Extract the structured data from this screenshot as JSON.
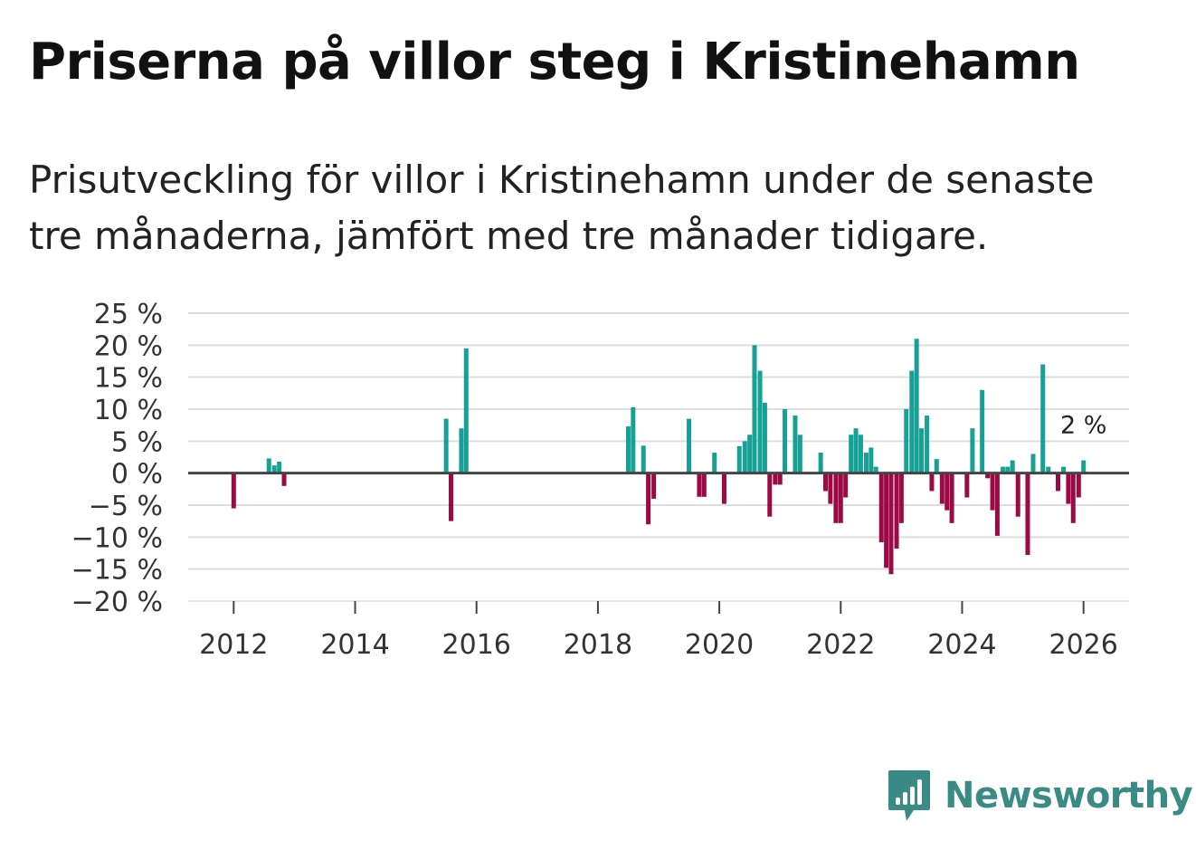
{
  "title": "Priserna på villor steg i Kristinehamn",
  "subtitle": "Prisutveckling för villor i Kristinehamn under de senaste tre månaderna, jämfört med tre månader tidigare.",
  "brand": {
    "name": "Newsworthy",
    "color": "#3a8a85",
    "icon": "bar-chart-speech-bubble-icon"
  },
  "colors": {
    "positive": "#16a196",
    "negative": "#9b0a44",
    "grid": "#dddddd",
    "zero_line": "#444444"
  },
  "chart_data": {
    "type": "bar",
    "title": "Priserna på villor steg i Kristinehamn",
    "xlabel": "",
    "ylabel": "",
    "unit": "%",
    "ylim": [
      -20,
      25
    ],
    "yticks": [
      25,
      20,
      15,
      10,
      5,
      0,
      -5,
      -10,
      -15,
      -20
    ],
    "ytick_labels": [
      "25 %",
      "20 %",
      "15 %",
      "10 %",
      "5 %",
      "0 %",
      "−5 %",
      "−10 %",
      "−15 %",
      "−20 %"
    ],
    "xlim": [
      2011.25,
      2026.75
    ],
    "xticks": [
      2012,
      2014,
      2016,
      2018,
      2020,
      2022,
      2024,
      2026
    ],
    "xtick_labels": [
      "2012",
      "2014",
      "2016",
      "2018",
      "2020",
      "2022",
      "2024",
      "2026"
    ],
    "grid": true,
    "annotation": {
      "x": 2026.0,
      "y": 2,
      "label": "2 %"
    },
    "series": [
      {
        "name": "Prisutveckling",
        "points": [
          {
            "x": 2012.0,
            "y": -5.5
          },
          {
            "x": 2012.58,
            "y": 2.3
          },
          {
            "x": 2012.67,
            "y": 1.2
          },
          {
            "x": 2012.75,
            "y": 1.8
          },
          {
            "x": 2012.83,
            "y": -2.0
          },
          {
            "x": 2015.5,
            "y": 8.5
          },
          {
            "x": 2015.58,
            "y": -7.5
          },
          {
            "x": 2015.75,
            "y": 7.0
          },
          {
            "x": 2015.83,
            "y": 19.5
          },
          {
            "x": 2018.5,
            "y": 7.3
          },
          {
            "x": 2018.58,
            "y": 10.3
          },
          {
            "x": 2018.75,
            "y": 4.3
          },
          {
            "x": 2018.83,
            "y": -8.0
          },
          {
            "x": 2018.92,
            "y": -4.0
          },
          {
            "x": 2019.5,
            "y": 8.5
          },
          {
            "x": 2019.67,
            "y": -3.7
          },
          {
            "x": 2019.75,
            "y": -3.7
          },
          {
            "x": 2019.92,
            "y": 3.2
          },
          {
            "x": 2020.08,
            "y": -4.8
          },
          {
            "x": 2020.33,
            "y": 4.2
          },
          {
            "x": 2020.42,
            "y": 5.0
          },
          {
            "x": 2020.5,
            "y": 6.0
          },
          {
            "x": 2020.58,
            "y": 20.0
          },
          {
            "x": 2020.67,
            "y": 16.0
          },
          {
            "x": 2020.75,
            "y": 11.0
          },
          {
            "x": 2020.83,
            "y": -6.8
          },
          {
            "x": 2020.92,
            "y": -1.8
          },
          {
            "x": 2021.0,
            "y": -1.8
          },
          {
            "x": 2021.08,
            "y": 10.0
          },
          {
            "x": 2021.25,
            "y": 9.0
          },
          {
            "x": 2021.33,
            "y": 6.0
          },
          {
            "x": 2021.67,
            "y": 3.2
          },
          {
            "x": 2021.75,
            "y": -2.8
          },
          {
            "x": 2021.83,
            "y": -4.8
          },
          {
            "x": 2021.92,
            "y": -7.8
          },
          {
            "x": 2022.0,
            "y": -7.8
          },
          {
            "x": 2022.08,
            "y": -3.8
          },
          {
            "x": 2022.17,
            "y": 6.0
          },
          {
            "x": 2022.25,
            "y": 7.0
          },
          {
            "x": 2022.33,
            "y": 6.0
          },
          {
            "x": 2022.42,
            "y": 3.2
          },
          {
            "x": 2022.5,
            "y": 4.0
          },
          {
            "x": 2022.58,
            "y": 1.0
          },
          {
            "x": 2022.67,
            "y": -10.8
          },
          {
            "x": 2022.75,
            "y": -14.8
          },
          {
            "x": 2022.83,
            "y": -15.8
          },
          {
            "x": 2022.92,
            "y": -11.8
          },
          {
            "x": 2023.0,
            "y": -7.8
          },
          {
            "x": 2023.08,
            "y": 10.0
          },
          {
            "x": 2023.17,
            "y": 16.0
          },
          {
            "x": 2023.25,
            "y": 21.0
          },
          {
            "x": 2023.33,
            "y": 7.0
          },
          {
            "x": 2023.42,
            "y": 9.0
          },
          {
            "x": 2023.5,
            "y": -2.8
          },
          {
            "x": 2023.58,
            "y": 2.2
          },
          {
            "x": 2023.67,
            "y": -4.8
          },
          {
            "x": 2023.75,
            "y": -5.8
          },
          {
            "x": 2023.83,
            "y": -7.8
          },
          {
            "x": 2024.08,
            "y": -3.8
          },
          {
            "x": 2024.17,
            "y": 7.0
          },
          {
            "x": 2024.33,
            "y": 13.0
          },
          {
            "x": 2024.42,
            "y": -0.8
          },
          {
            "x": 2024.5,
            "y": -5.8
          },
          {
            "x": 2024.58,
            "y": -9.8
          },
          {
            "x": 2024.67,
            "y": 1.0
          },
          {
            "x": 2024.75,
            "y": 1.0
          },
          {
            "x": 2024.83,
            "y": 2.0
          },
          {
            "x": 2024.92,
            "y": -6.8
          },
          {
            "x": 2025.08,
            "y": -12.8
          },
          {
            "x": 2025.17,
            "y": 3.0
          },
          {
            "x": 2025.33,
            "y": 17.0
          },
          {
            "x": 2025.42,
            "y": 1.0
          },
          {
            "x": 2025.58,
            "y": -2.8
          },
          {
            "x": 2025.67,
            "y": 1.0
          },
          {
            "x": 2025.75,
            "y": -4.8
          },
          {
            "x": 2025.83,
            "y": -7.8
          },
          {
            "x": 2025.92,
            "y": -3.8
          },
          {
            "x": 2026.0,
            "y": 2.0
          }
        ]
      }
    ]
  }
}
